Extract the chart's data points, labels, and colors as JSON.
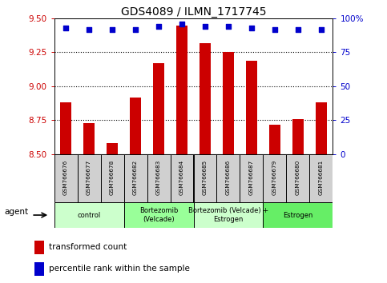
{
  "title": "GDS4089 / ILMN_1717745",
  "samples": [
    "GSM766676",
    "GSM766677",
    "GSM766678",
    "GSM766682",
    "GSM766683",
    "GSM766684",
    "GSM766685",
    "GSM766686",
    "GSM766687",
    "GSM766679",
    "GSM766680",
    "GSM766681"
  ],
  "bar_values": [
    8.88,
    8.73,
    8.58,
    8.92,
    9.17,
    9.45,
    9.32,
    9.25,
    9.19,
    8.72,
    8.76,
    8.88
  ],
  "dot_values": [
    93,
    92,
    92,
    92,
    94,
    96,
    94,
    94,
    93,
    92,
    92,
    92
  ],
  "ylim_left": [
    8.5,
    9.5
  ],
  "ylim_right": [
    0,
    100
  ],
  "yticks_left": [
    8.5,
    8.75,
    9.0,
    9.25,
    9.5
  ],
  "yticks_right": [
    0,
    25,
    50,
    75,
    100
  ],
  "bar_color": "#cc0000",
  "dot_color": "#0000cc",
  "groups": [
    {
      "label": "control",
      "start": 0,
      "end": 3,
      "color": "#ccffcc"
    },
    {
      "label": "Bortezomib\n(Velcade)",
      "start": 3,
      "end": 6,
      "color": "#99ff99"
    },
    {
      "label": "Bortezomib (Velcade) +\nEstrogen",
      "start": 6,
      "end": 9,
      "color": "#ccffcc"
    },
    {
      "label": "Estrogen",
      "start": 9,
      "end": 12,
      "color": "#66ee66"
    }
  ],
  "legend_bar_label": "transformed count",
  "legend_dot_label": "percentile rank within the sample",
  "agent_label": "agent",
  "tick_label_color": "#cc0000",
  "right_tick_color": "#0000cc",
  "bar_bottom": 8.5,
  "cell_color": "#d0d0d0",
  "grid_ticks": [
    8.75,
    9.0,
    9.25
  ]
}
